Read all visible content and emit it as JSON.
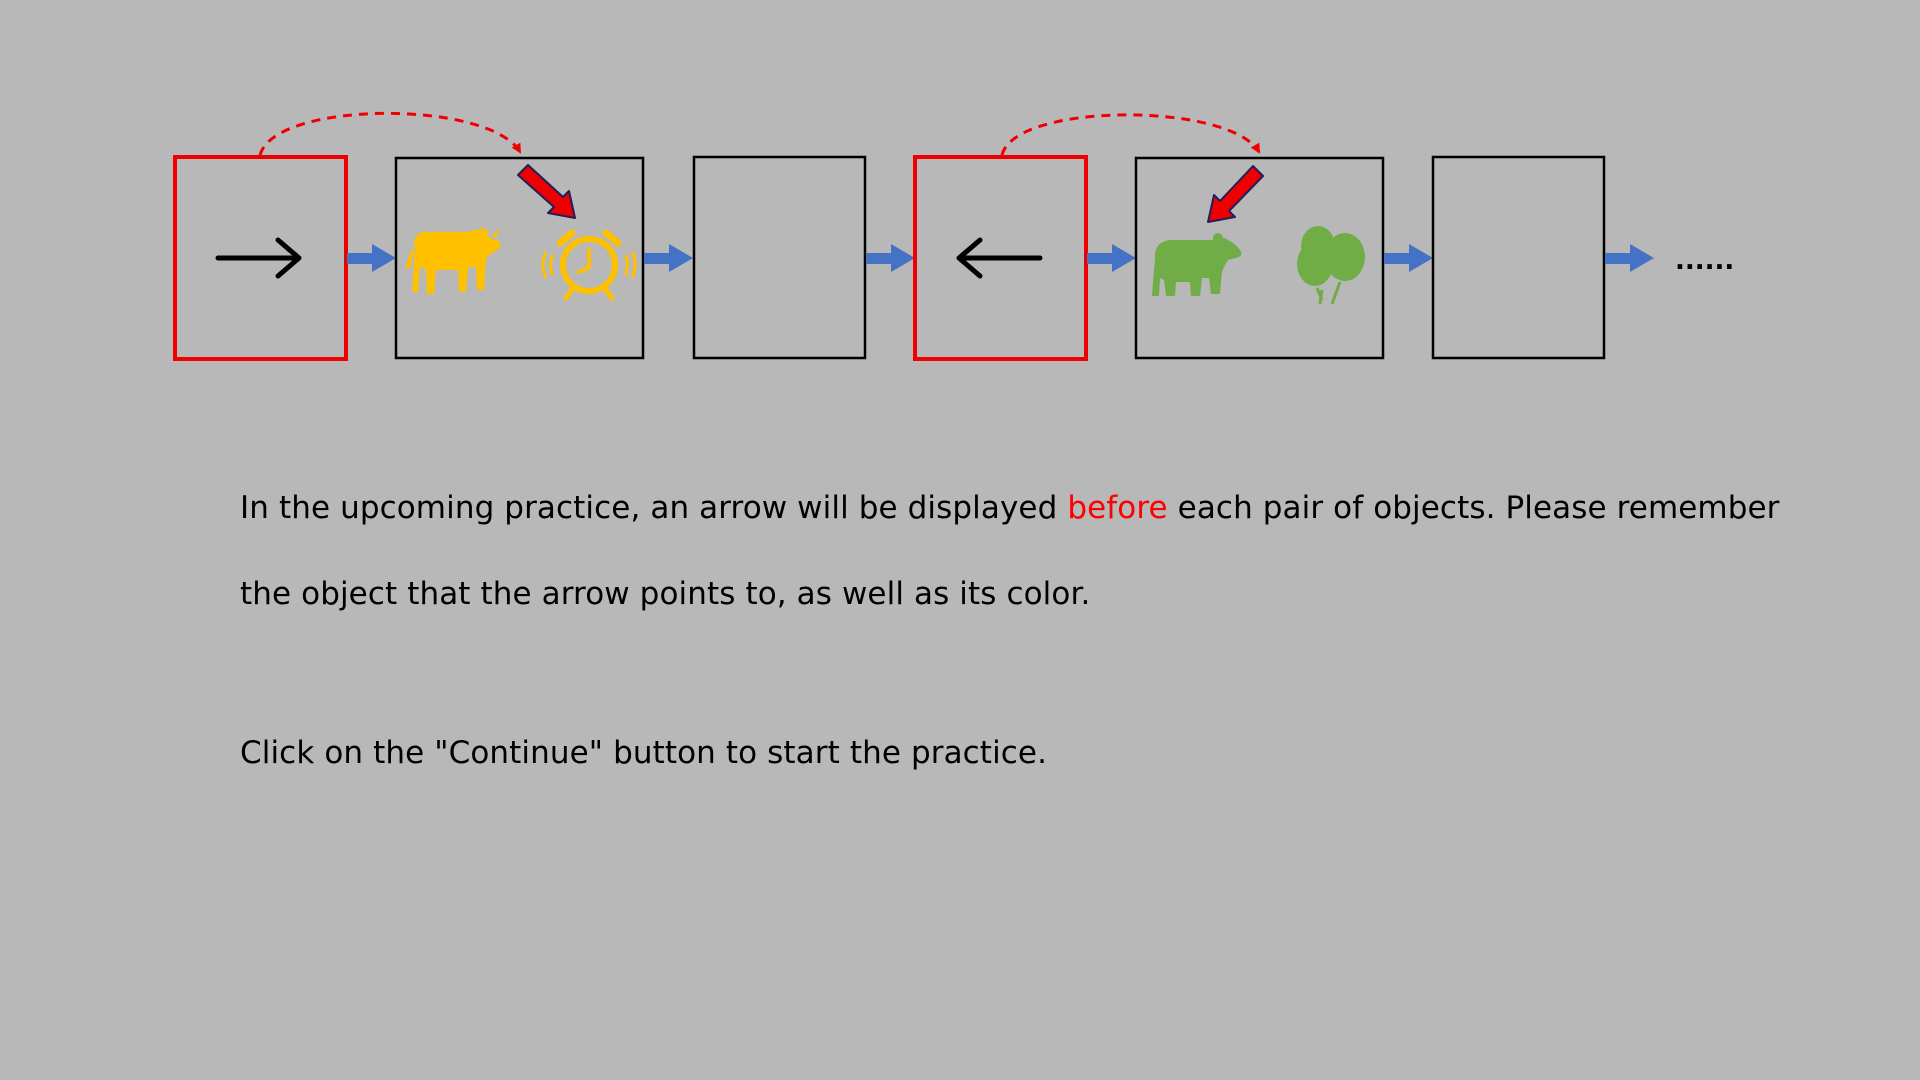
{
  "sequence": {
    "frames": [
      {
        "kind": "cue",
        "cue_direction": "right",
        "border_color": "#ee0000"
      },
      {
        "kind": "objects",
        "objects": [
          "cow",
          "alarm-clock"
        ],
        "object_color": "#ffc000",
        "cued_object": "alarm-clock"
      },
      {
        "kind": "blank"
      },
      {
        "kind": "cue",
        "cue_direction": "left",
        "border_color": "#ee0000"
      },
      {
        "kind": "objects",
        "objects": [
          "bear",
          "balloons"
        ],
        "object_color": "#70ad47",
        "cued_object": "bear"
      },
      {
        "kind": "blank"
      }
    ],
    "connector_color": "#4472c4",
    "pointer_color": "#ee0000",
    "ellipsis": "......"
  },
  "instruction": {
    "line1_before": "In the upcoming practice, an arrow will be displayed ",
    "line1_highlight": "before",
    "line1_after": " each pair of objects. Please remember",
    "line2": "the object that the arrow points to, as well as its color.",
    "highlight_color": "#ff0000"
  },
  "continue_hint": "Click on the \"Continue\" button to start the practice."
}
